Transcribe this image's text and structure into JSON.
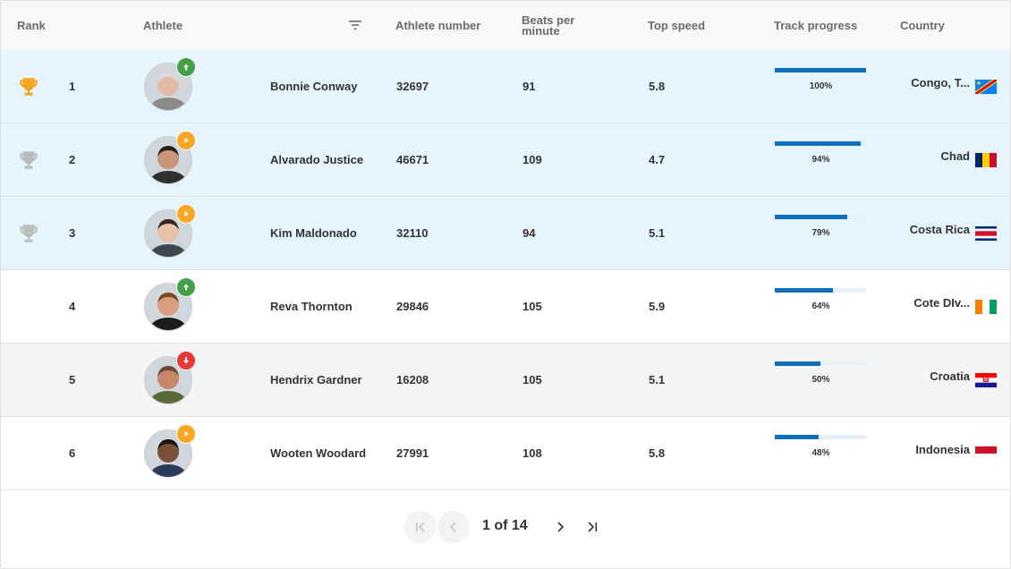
{
  "header": {
    "rank": "Rank",
    "athlete": "Athlete",
    "athlete_number": "Athlete number",
    "bpm": "Beats per minute",
    "top_speed": "Top speed",
    "track_progress": "Track progress",
    "country": "Country"
  },
  "rows": [
    {
      "rank": "1",
      "trophy": "gold",
      "trend": "up",
      "trend_color": "#43a047",
      "name": "Bonnie Conway",
      "number": "32697",
      "bpm": "91",
      "speed": "5.8",
      "progress": 100,
      "progress_label": "100%",
      "country": "Congo, T...",
      "flag": "congo",
      "highlight": "blue"
    },
    {
      "rank": "2",
      "trophy": "silver",
      "trend": "same",
      "trend_color": "#f9a825",
      "name": "Alvarado Justice",
      "number": "46671",
      "bpm": "109",
      "speed": "4.7",
      "progress": 94,
      "progress_label": "94%",
      "country": "Chad",
      "flag": "chad",
      "highlight": "blue"
    },
    {
      "rank": "3",
      "trophy": "silver",
      "trend": "same",
      "trend_color": "#f9a825",
      "name": "Kim Maldonado",
      "number": "32110",
      "bpm": "94",
      "speed": "5.1",
      "progress": 79,
      "progress_label": "79%",
      "country": "Costa Rica",
      "flag": "costa-rica",
      "highlight": "blue"
    },
    {
      "rank": "4",
      "trophy": "none",
      "trend": "up",
      "trend_color": "#43a047",
      "name": "Reva Thornton",
      "number": "29846",
      "bpm": "105",
      "speed": "5.9",
      "progress": 64,
      "progress_label": "64%",
      "country": "Cote DIv...",
      "flag": "cote-divoire",
      "highlight": "none"
    },
    {
      "rank": "5",
      "trophy": "none",
      "trend": "down",
      "trend_color": "#e53935",
      "name": "Hendrix Gardner",
      "number": "16208",
      "bpm": "105",
      "speed": "5.1",
      "progress": 50,
      "progress_label": "50%",
      "country": "Croatia",
      "flag": "croatia",
      "highlight": "gray"
    },
    {
      "rank": "6",
      "trophy": "none",
      "trend": "same",
      "trend_color": "#f9a825",
      "name": "Wooten Woodard",
      "number": "27991",
      "bpm": "108",
      "speed": "5.8",
      "progress": 48,
      "progress_label": "48%",
      "country": "Indonesia",
      "flag": "indonesia",
      "highlight": "none"
    }
  ],
  "pager": {
    "label": "1 of 14",
    "first_icon": "first-page-icon",
    "prev_icon": "chevron-left-icon",
    "next_icon": "chevron-right-icon",
    "last_icon": "last-page-icon"
  },
  "colors": {
    "highlight_blue": "#e5f4fd",
    "highlight_gray": "#f4f4f4",
    "progress_fill": "#0f6fbd",
    "gold": "#f5a623",
    "silver": "#bdbdbd"
  }
}
